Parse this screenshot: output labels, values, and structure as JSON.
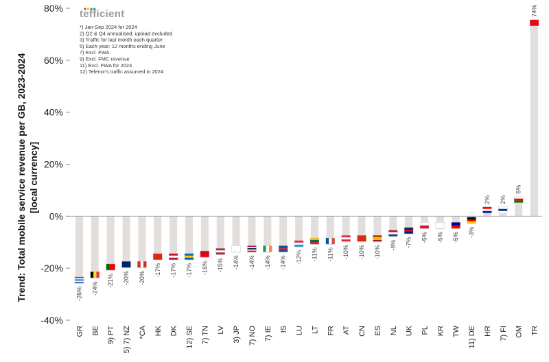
{
  "brand": {
    "prefix": "t",
    "dotted": "e",
    "rest": "fficient",
    "dot_colors": [
      "#e3342f",
      "#f6c000",
      "#38a169",
      "#3182ce"
    ]
  },
  "notes": [
    "*) Jan-Sep 2024 for 2024",
    "2) Q2 & Q4 annualised, upload excluded",
    "3) Traffic for last month each quarter",
    "5) Each year: 12 months ending June",
    "7) Excl. FWA",
    "9) Excl. FMC revenue",
    "11) Excl. FWA for 2024",
    "12) Telenor's traffic assumed in 2024"
  ],
  "chart_data": {
    "type": "bar",
    "title": "",
    "xlabel": "",
    "ylabel": "Trend: Total mobile service revenue per GB, 2023-2024 [local currency]",
    "ylim": [
      -40,
      80
    ],
    "yticks": [
      -40,
      -20,
      0,
      20,
      40,
      60,
      80
    ],
    "ytick_labels": [
      "-40%",
      "-20%",
      "0%",
      "20%",
      "40%",
      "60%",
      "80%"
    ],
    "grid": false,
    "bar_color": "#e2dedb",
    "categories": [
      "GR",
      "BE",
      "9) PT",
      "5) 7) NZ",
      "*CA",
      "HK",
      "DK",
      "12) SE",
      "7) TN",
      "LV",
      "3) JP",
      "7) NO",
      "7) IE",
      "IS",
      "LU",
      "LT",
      "FR",
      "AT",
      "CN",
      "ES",
      "NL",
      "UK",
      "PL",
      "KR",
      "TW",
      "11) DE",
      "HR",
      "7) FI",
      "OM",
      "TR"
    ],
    "values": [
      -26,
      -24,
      -21,
      -20,
      -20,
      -17,
      -17,
      -17,
      -16,
      -15,
      -14,
      -14,
      -14,
      -14,
      -12,
      -11,
      -11,
      -10,
      -10,
      -10,
      -8,
      -7,
      -5,
      -5,
      -5,
      -3,
      2,
      2,
      6,
      74
    ],
    "value_labels": [
      "-26%",
      "-24%",
      "-21%",
      "-20%",
      "-20%",
      "-17%",
      "-17%",
      "-17%",
      "-16%",
      "-15%",
      "-14%",
      "-14%",
      "-14%",
      "-14%",
      "-12%",
      "-11%",
      "-11%",
      "-10%",
      "-10%",
      "-10%",
      "-8%",
      "-7%",
      "-5%",
      "-5%",
      "-5%",
      "-3%",
      "2%",
      "2%",
      "6%",
      "74%"
    ],
    "flags": [
      {
        "kind": "stripes",
        "dir": "h",
        "colors": [
          "#0d5eaf",
          "#ffffff",
          "#0d5eaf",
          "#ffffff",
          "#0d5eaf"
        ]
      },
      {
        "kind": "stripes",
        "dir": "v",
        "colors": [
          "#000000",
          "#fdda24",
          "#ef3340"
        ]
      },
      {
        "kind": "stripes",
        "dir": "v",
        "colors": [
          "#006600",
          "#ff0000",
          "#ff0000"
        ]
      },
      {
        "kind": "stripes",
        "dir": "h",
        "colors": [
          "#012169",
          "#012169"
        ]
      },
      {
        "kind": "stripes",
        "dir": "v",
        "colors": [
          "#d52b1e",
          "#ffffff",
          "#d52b1e"
        ]
      },
      {
        "kind": "stripes",
        "dir": "h",
        "colors": [
          "#de2910"
        ]
      },
      {
        "kind": "stripes",
        "dir": "h",
        "colors": [
          "#c8102e",
          "#ffffff",
          "#c8102e"
        ]
      },
      {
        "kind": "stripes",
        "dir": "h",
        "colors": [
          "#006aa7",
          "#fecc02",
          "#006aa7"
        ]
      },
      {
        "kind": "stripes",
        "dir": "h",
        "colors": [
          "#e70013"
        ]
      },
      {
        "kind": "stripes",
        "dir": "h",
        "colors": [
          "#9e3039",
          "#ffffff",
          "#9e3039"
        ]
      },
      {
        "kind": "stripes",
        "dir": "h",
        "colors": [
          "#ffffff"
        ]
      },
      {
        "kind": "stripes",
        "dir": "h",
        "colors": [
          "#ba0c2f",
          "#ffffff",
          "#00205b",
          "#ffffff",
          "#ba0c2f"
        ]
      },
      {
        "kind": "stripes",
        "dir": "v",
        "colors": [
          "#169b62",
          "#ffffff",
          "#ff883e"
        ]
      },
      {
        "kind": "stripes",
        "dir": "h",
        "colors": [
          "#02529c",
          "#dc1e35",
          "#02529c"
        ]
      },
      {
        "kind": "stripes",
        "dir": "h",
        "colors": [
          "#ed2939",
          "#ffffff",
          "#00a1de"
        ]
      },
      {
        "kind": "stripes",
        "dir": "h",
        "colors": [
          "#fdb913",
          "#006a44",
          "#c1272d"
        ]
      },
      {
        "kind": "stripes",
        "dir": "v",
        "colors": [
          "#0055a4",
          "#ffffff",
          "#ef4135"
        ]
      },
      {
        "kind": "stripes",
        "dir": "h",
        "colors": [
          "#ed2939",
          "#ffffff",
          "#ed2939"
        ]
      },
      {
        "kind": "stripes",
        "dir": "h",
        "colors": [
          "#de2910"
        ]
      },
      {
        "kind": "stripes",
        "dir": "h",
        "colors": [
          "#aa151b",
          "#f1bf00",
          "#f1bf00",
          "#aa151b"
        ]
      },
      {
        "kind": "stripes",
        "dir": "h",
        "colors": [
          "#ae1c28",
          "#ffffff",
          "#21468b"
        ]
      },
      {
        "kind": "stripes",
        "dir": "h",
        "colors": [
          "#012169",
          "#c8102e",
          "#012169"
        ]
      },
      {
        "kind": "stripes",
        "dir": "h",
        "colors": [
          "#ffffff",
          "#dc143c"
        ]
      },
      {
        "kind": "stripes",
        "dir": "h",
        "colors": [
          "#ffffff"
        ]
      },
      {
        "kind": "stripes",
        "dir": "h",
        "colors": [
          "#000095",
          "#fe0000"
        ]
      },
      {
        "kind": "stripes",
        "dir": "h",
        "colors": [
          "#000000",
          "#dd0000",
          "#ffce00"
        ]
      },
      {
        "kind": "stripes",
        "dir": "h",
        "colors": [
          "#ff0000",
          "#ffffff",
          "#171796"
        ]
      },
      {
        "kind": "stripes",
        "dir": "h",
        "colors": [
          "#ffffff",
          "#003580",
          "#ffffff"
        ]
      },
      {
        "kind": "stripes",
        "dir": "h",
        "colors": [
          "#ffffff",
          "#db161b",
          "#008000"
        ]
      },
      {
        "kind": "stripes",
        "dir": "h",
        "colors": [
          "#e30a17"
        ]
      }
    ]
  }
}
